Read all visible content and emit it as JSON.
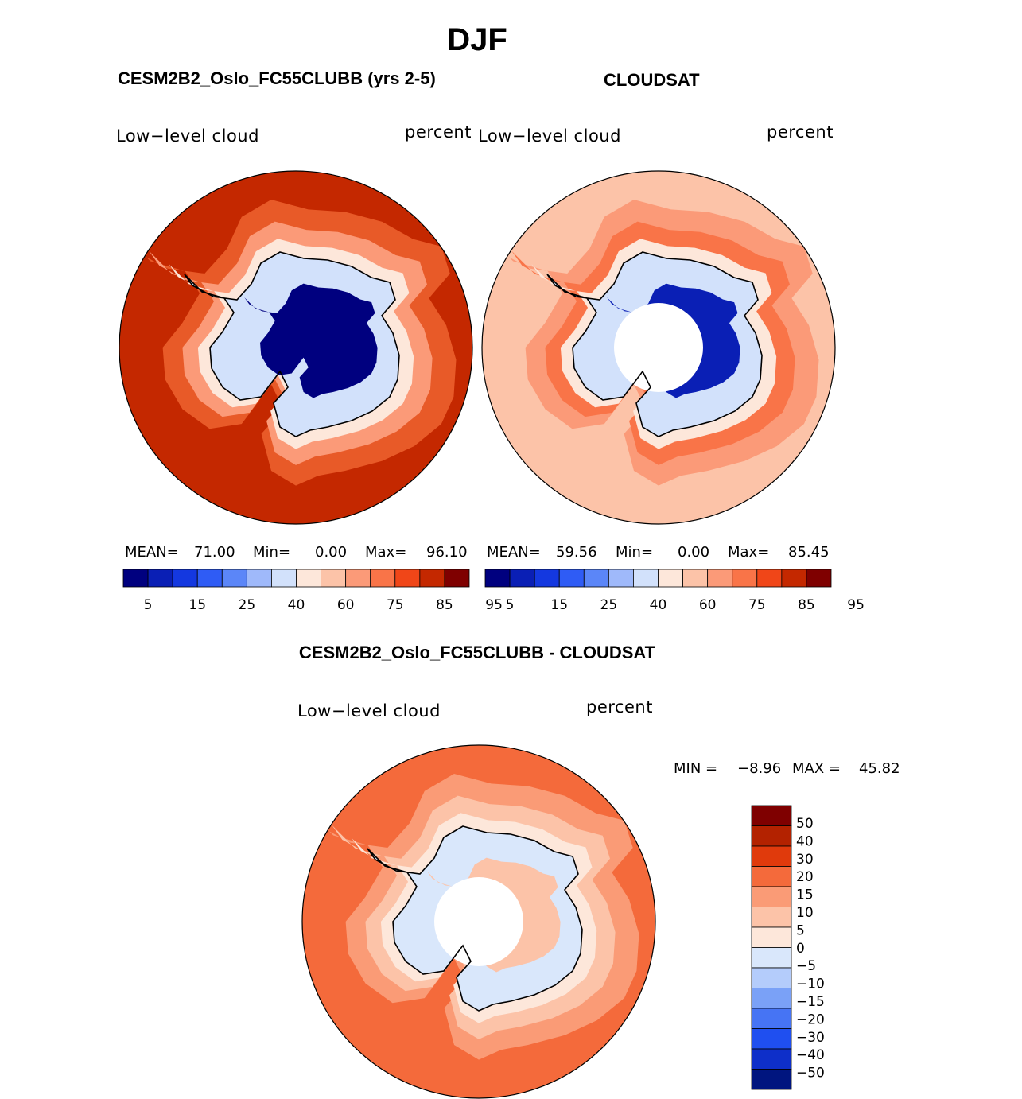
{
  "figure": {
    "title": "DJF",
    "left_panel_title": "CESM2B2_Oslo_FC55CLUBB (yrs 2-5)",
    "right_panel_title": "CLOUDSAT",
    "diff_panel_title": "CESM2B2_Oslo_FC55CLUBB - CLOUDSAT"
  },
  "panels": {
    "model": {
      "variable": "Low−level cloud",
      "units": "percent",
      "mean_label": "MEAN=",
      "mean": "71.00",
      "min_label": "Min=",
      "min": "0.00",
      "max_label": "Max=",
      "max": "96.10"
    },
    "obs": {
      "variable": "Low−level cloud",
      "units": "percent",
      "mean_label": "MEAN=",
      "mean": "59.56",
      "min_label": "Min=",
      "min": "0.00",
      "max_label": "Max=",
      "max": "85.45"
    },
    "diff": {
      "variable": "Low−level cloud",
      "units": "percent",
      "min_label": "MIN =",
      "min": "−8.96",
      "max_label": "MAX =",
      "max": "45.82"
    }
  },
  "colorbars": {
    "field": {
      "colors": [
        "#00007f",
        "#0a1fb5",
        "#1438e0",
        "#2f5cf5",
        "#5b86f8",
        "#9fb9fa",
        "#d2e1fb",
        "#fde7da",
        "#fcc3a8",
        "#fb9a78",
        "#f97448",
        "#f04618",
        "#c42800",
        "#7f0000"
      ],
      "tick_labels": [
        "5",
        "15",
        "25",
        "40",
        "60",
        "75",
        "85",
        "95"
      ]
    },
    "diff": {
      "colors_top_to_bottom": [
        "#7f0000",
        "#b32200",
        "#e03a0c",
        "#f46a3b",
        "#fa9b76",
        "#fcc3a8",
        "#fde7da",
        "#d9e7fb",
        "#b4ccfb",
        "#7aa1f7",
        "#4674f4",
        "#1f4ff0",
        "#0e2fc9",
        "#00157f"
      ],
      "tick_labels": [
        "50",
        "40",
        "30",
        "20",
        "15",
        "10",
        "5",
        "0",
        "−5",
        "−10",
        "−15",
        "−20",
        "−30",
        "−40",
        "−50"
      ]
    }
  },
  "maps": {
    "model": {
      "background": "#c42800",
      "ring_outer": "#e85a28",
      "ring_mid": "#fb9a78",
      "ring_inner": "#fde7da",
      "land_low": "#d2e1fb",
      "land_core": "#00007f",
      "has_missing_pole": false
    },
    "obs": {
      "background": "#fcc3a8",
      "ring_outer": "#fb9a78",
      "ring_mid": "#f97448",
      "ring_inner": "#fde7da",
      "land_low": "#d2e1fb",
      "land_core": "#0a1fb5",
      "has_missing_pole": true
    },
    "diff": {
      "background": "#f46a3b",
      "ring_outer": "#fa9b76",
      "ring_mid": "#fcc3a8",
      "ring_inner": "#fde7da",
      "land_low": "#d9e7fb",
      "land_core": "#fcc3a8",
      "has_missing_pole": true
    }
  }
}
